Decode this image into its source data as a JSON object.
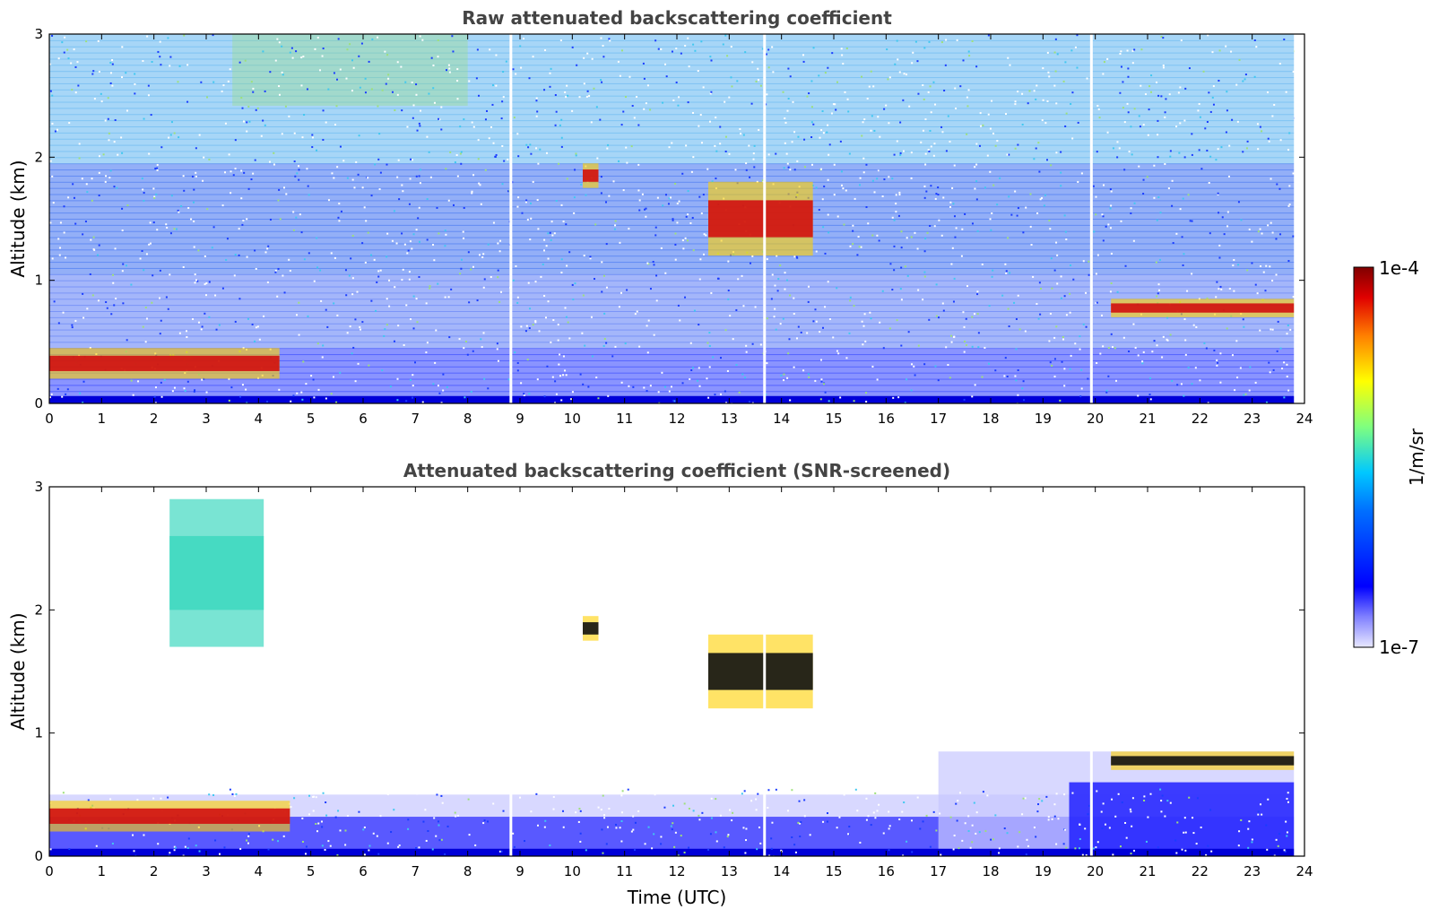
{
  "chart_data": [
    {
      "type": "heatmap",
      "title": "Raw attenuated backscattering coefficient",
      "xlabel": "",
      "ylabel": "Altitude (km)",
      "xlim": [
        0,
        24
      ],
      "ylim": [
        0,
        3
      ],
      "xticks": [
        "0",
        "1",
        "2",
        "3",
        "4",
        "5",
        "6",
        "7",
        "8",
        "9",
        "10",
        "11",
        "12",
        "13",
        "14",
        "15",
        "16",
        "17",
        "18",
        "19",
        "20",
        "21",
        "22",
        "23",
        "24"
      ],
      "yticks": [
        "0",
        "1",
        "2",
        "3"
      ],
      "data_end_hour": 23.8,
      "features": [
        {
          "label": "boundary layer aerosol",
          "x": [
            0,
            4.4
          ],
          "y": [
            0.2,
            0.45
          ]
        },
        {
          "label": "cloud",
          "x": [
            10.2,
            10.5
          ],
          "y": [
            1.75,
            1.95
          ]
        },
        {
          "label": "cloud",
          "x": [
            12.6,
            14.6
          ],
          "y": [
            1.2,
            1.8
          ]
        },
        {
          "label": "cloud",
          "x": [
            20.3,
            23.8
          ],
          "y": [
            0.7,
            0.85
          ]
        }
      ]
    },
    {
      "type": "heatmap",
      "title": "Attenuated backscattering coefficient (SNR-screened)",
      "xlabel": "Time (UTC)",
      "ylabel": "Altitude (km)",
      "xlim": [
        0,
        24
      ],
      "ylim": [
        0,
        3
      ],
      "xticks": [
        "0",
        "1",
        "2",
        "3",
        "4",
        "5",
        "6",
        "7",
        "8",
        "9",
        "10",
        "11",
        "12",
        "13",
        "14",
        "15",
        "16",
        "17",
        "18",
        "19",
        "20",
        "21",
        "22",
        "23",
        "24"
      ],
      "yticks": [
        "0",
        "1",
        "2",
        "3"
      ],
      "data_end_hour": 23.8,
      "features": [
        {
          "label": "boundary layer aerosol",
          "x": [
            0,
            4.6
          ],
          "y": [
            0.2,
            0.45
          ]
        },
        {
          "label": "aerosol plume",
          "x": [
            2.3,
            4.1
          ],
          "y": [
            1.7,
            2.9
          ]
        },
        {
          "label": "cloud",
          "x": [
            10.2,
            10.5
          ],
          "y": [
            1.75,
            1.95
          ]
        },
        {
          "label": "cloud",
          "x": [
            12.6,
            14.6
          ],
          "y": [
            1.2,
            1.8
          ]
        },
        {
          "label": "cloud",
          "x": [
            20.3,
            23.8
          ],
          "y": [
            0.7,
            0.85
          ]
        }
      ]
    }
  ],
  "colorbar": {
    "label": "1/m/sr",
    "max_label": "1e-4",
    "min_label": "1e-7",
    "scale": "log",
    "range": [
      1e-07,
      0.0001
    ],
    "colors": [
      "#e8e8ff",
      "#0000ff",
      "#00c8ff",
      "#7fff7f",
      "#ffff00",
      "#ff7f00",
      "#d00000",
      "#800000"
    ]
  }
}
